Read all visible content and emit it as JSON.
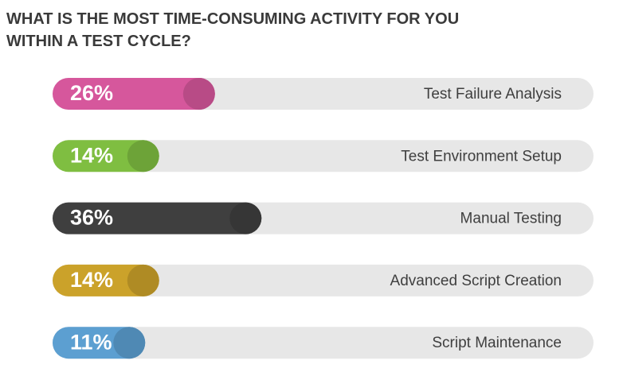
{
  "chart_data": {
    "type": "bar",
    "orientation": "horizontal",
    "title": [
      "WHAT IS THE MOST TIME-CONSUMING ACTIVITY FOR YOU",
      "WITHIN A TEST CYCLE?"
    ],
    "categories": [
      "Test Failure Analysis",
      "Test Environment Setup",
      "Manual Testing",
      "Advanced Script Creation",
      "Script Maintenance"
    ],
    "values": [
      26,
      14,
      36,
      14,
      11
    ],
    "value_labels": [
      "26%",
      "14%",
      "36%",
      "14%",
      "11%"
    ],
    "colors": [
      "#d6579c",
      "#7fbe41",
      "#3f3f3f",
      "#cba22a",
      "#5c9fd1"
    ]
  }
}
